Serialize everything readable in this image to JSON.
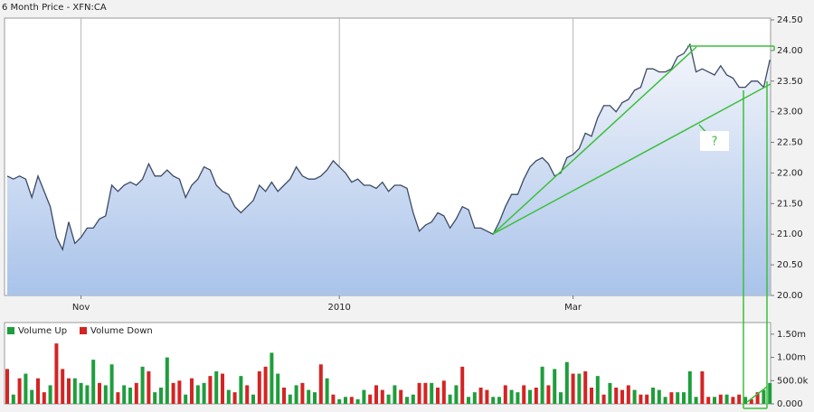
{
  "chart_data": [
    {
      "type": "line",
      "title": "6 Month Price - XFN:CA",
      "annotation": "?",
      "color": "#3c4a66",
      "grid": true,
      "categories": [
        null,
        null,
        null,
        null,
        null,
        null,
        null,
        null,
        null,
        null,
        null,
        null,
        "Nov",
        null,
        null,
        null,
        null,
        null,
        null,
        null,
        null,
        null,
        null,
        null,
        null,
        null,
        null,
        null,
        null,
        null,
        null,
        null,
        null,
        null,
        null,
        null,
        null,
        null,
        null,
        null,
        null,
        null,
        null,
        null,
        null,
        null,
        null,
        null,
        null,
        null,
        null,
        null,
        null,
        null,
        "2010",
        null,
        null,
        null,
        null,
        null,
        null,
        null,
        null,
        null,
        null,
        null,
        null,
        null,
        null,
        null,
        null,
        null,
        null,
        null,
        null,
        null,
        null,
        null,
        null,
        null,
        null,
        null,
        null,
        null,
        null,
        null,
        null,
        null,
        null,
        null,
        null,
        null,
        "Mar",
        null,
        null,
        null,
        null,
        null,
        null,
        null,
        null,
        null,
        null,
        null,
        null,
        null,
        null,
        null,
        null,
        null,
        null,
        null,
        null,
        null,
        null,
        null,
        null,
        null,
        null,
        null,
        null,
        null,
        null,
        null,
        null
      ],
      "values": [
        21.95,
        21.9,
        21.95,
        21.9,
        21.6,
        21.95,
        21.7,
        21.45,
        20.95,
        20.75,
        21.2,
        20.85,
        20.95,
        21.1,
        21.1,
        21.25,
        21.3,
        21.8,
        21.7,
        21.8,
        21.85,
        21.8,
        21.9,
        22.15,
        21.95,
        21.95,
        22.05,
        21.95,
        21.9,
        21.6,
        21.8,
        21.9,
        22.1,
        22.05,
        21.8,
        21.7,
        21.65,
        21.45,
        21.35,
        21.45,
        21.55,
        21.8,
        21.7,
        21.85,
        21.7,
        21.8,
        21.9,
        22.1,
        21.95,
        21.9,
        21.9,
        21.95,
        22.05,
        22.2,
        22.1,
        22,
        21.85,
        21.9,
        21.8,
        21.8,
        21.75,
        21.85,
        21.7,
        21.8,
        21.8,
        21.75,
        21.35,
        21.05,
        21.15,
        21.2,
        21.35,
        21.3,
        21.1,
        21.25,
        21.45,
        21.4,
        21.1,
        21.1,
        21.05,
        21,
        21.2,
        21.45,
        21.65,
        21.65,
        21.9,
        22.1,
        22.2,
        22.25,
        22.15,
        21.95,
        22,
        22.25,
        22.3,
        22.4,
        22.65,
        22.6,
        22.9,
        23.1,
        23.1,
        23,
        23.15,
        23.2,
        23.35,
        23.4,
        23.7,
        23.7,
        23.65,
        23.65,
        23.7,
        23.9,
        23.95,
        24.1,
        23.65,
        23.7,
        23.65,
        23.6,
        23.75,
        23.6,
        23.55,
        23.4,
        23.4,
        23.5,
        23.5,
        23.4,
        23.85
      ],
      "ylim": [
        20,
        24.5
      ],
      "yticks": [
        {
          "value": 20,
          "label": "20.00"
        },
        {
          "value": 20.5,
          "label": "20.50"
        },
        {
          "value": 21,
          "label": "21.00"
        },
        {
          "value": 21.5,
          "label": "21.50"
        },
        {
          "value": 22,
          "label": "22.00"
        },
        {
          "value": 22.5,
          "label": "22.50"
        },
        {
          "value": 23,
          "label": "23.00"
        },
        {
          "value": 23.5,
          "label": "23.50"
        },
        {
          "value": 24,
          "label": "24.00"
        },
        {
          "value": 24.5,
          "label": "24.50"
        }
      ]
    },
    {
      "type": "bar",
      "series": [
        {
          "name": "Volume Up",
          "color": "#1e9e3c",
          "values": [
            null,
            200000,
            null,
            650000,
            300000,
            null,
            null,
            400000,
            null,
            null,
            null,
            550000,
            450000,
            400000,
            950000,
            null,
            400000,
            850000,
            null,
            400000,
            350000,
            null,
            800000,
            null,
            250000,
            350000,
            1000000,
            null,
            null,
            200000,
            null,
            400000,
            450000,
            null,
            700000,
            null,
            300000,
            null,
            600000,
            null,
            200000,
            null,
            null,
            1100000,
            650000,
            null,
            200000,
            400000,
            null,
            300000,
            250000,
            null,
            550000,
            null,
            100000,
            150000,
            null,
            100000,
            300000,
            null,
            null,
            null,
            200000,
            400000,
            null,
            150000,
            200000,
            null,
            null,
            450000,
            null,
            null,
            200000,
            400000,
            null,
            150000,
            250000,
            null,
            null,
            150000,
            150000,
            null,
            300000,
            250000,
            null,
            300000,
            null,
            800000,
            null,
            750000,
            250000,
            900000,
            null,
            650000,
            null,
            null,
            600000,
            null,
            450000,
            null,
            null,
            null,
            300000,
            null,
            null,
            350000,
            300000,
            150000,
            null,
            250000,
            250000,
            700000,
            150000,
            null,
            null,
            150000,
            null,
            200000,
            null,
            null,
            150000,
            null,
            null,
            300000,
            450000
          ]
        },
        {
          "name": "Volume Down",
          "color": "#d42424",
          "values": [
            750000,
            null,
            550000,
            null,
            null,
            550000,
            250000,
            null,
            1300000,
            750000,
            550000,
            null,
            null,
            null,
            null,
            450000,
            null,
            null,
            250000,
            null,
            null,
            450000,
            null,
            700000,
            null,
            null,
            null,
            450000,
            500000,
            null,
            550000,
            null,
            null,
            600000,
            null,
            650000,
            null,
            250000,
            null,
            400000,
            null,
            700000,
            800000,
            null,
            null,
            350000,
            null,
            null,
            450000,
            null,
            null,
            850000,
            null,
            200000,
            null,
            null,
            150000,
            null,
            null,
            200000,
            400000,
            300000,
            null,
            null,
            300000,
            null,
            null,
            450000,
            450000,
            null,
            350000,
            500000,
            null,
            null,
            800000,
            null,
            null,
            350000,
            300000,
            null,
            null,
            400000,
            null,
            null,
            400000,
            null,
            350000,
            null,
            400000,
            null,
            null,
            null,
            650000,
            null,
            700000,
            350000,
            null,
            200000,
            null,
            350000,
            300000,
            400000,
            null,
            200000,
            200000,
            null,
            null,
            null,
            250000,
            null,
            null,
            null,
            null,
            700000,
            150000,
            null,
            200000,
            null,
            150000,
            200000,
            null,
            100000,
            250000,
            null,
            null
          ]
        }
      ],
      "ylim": [
        0,
        1750000
      ],
      "yticks": [
        {
          "value": 0,
          "label": "0.000"
        },
        {
          "value": 500000,
          "label": "500.0k"
        },
        {
          "value": 1000000,
          "label": "1.00m"
        },
        {
          "value": 1500000,
          "label": "1.50m"
        }
      ]
    }
  ]
}
